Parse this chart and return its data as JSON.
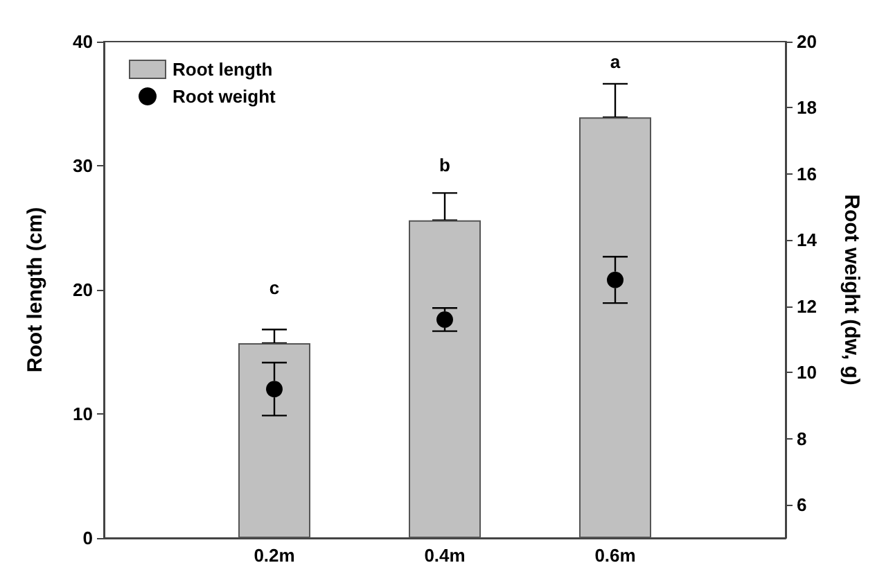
{
  "chart_data": {
    "type": "bar",
    "ylabel": "Root length (cm)",
    "y2label": "Root weight (dw, g)",
    "categories": [
      null,
      "0.2m",
      "0.4m",
      "0.6m",
      null
    ],
    "ylim": [
      0,
      40
    ],
    "yticks": [
      0,
      10,
      20,
      30,
      40
    ],
    "y2lim": [
      5,
      20
    ],
    "y2ticks": [
      6,
      8,
      10,
      12,
      14,
      16,
      18,
      20
    ],
    "series": [
      {
        "name": "Root length",
        "color": "#c0c0c0",
        "values": [
          null,
          15.7,
          25.6,
          33.9,
          null
        ],
        "errors": [
          null,
          [
            15.7,
            16.8
          ],
          [
            25.6,
            27.8
          ],
          [
            33.9,
            36.6
          ],
          null
        ]
      },
      {
        "name": "Root weight",
        "type": "scatter",
        "axis": "y2",
        "color": "#000000",
        "values": [
          null,
          9.5,
          11.6,
          12.8,
          null
        ],
        "errors": [
          null,
          0.8,
          0.35,
          0.7,
          null
        ]
      }
    ],
    "marker": "circle",
    "grid": false,
    "legend": "top left",
    "annotations": [
      {
        "text": "c",
        "x": "0.2m",
        "y": 15.7
      },
      {
        "text": "b",
        "x": "0.4m",
        "y": 25.6
      },
      {
        "text": "a",
        "x": "0.6m",
        "y": 33.9
      }
    ]
  }
}
